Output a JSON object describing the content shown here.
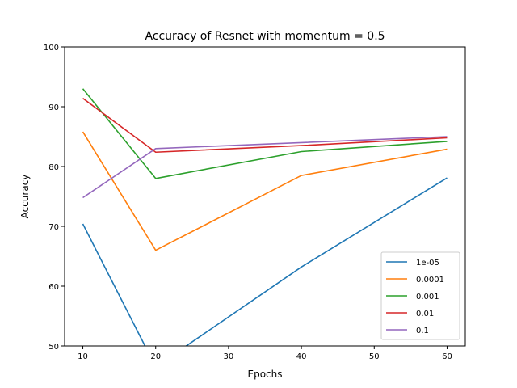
{
  "chart_data": {
    "type": "line",
    "title": "Accuracy of Resnet with momentum = 0.5",
    "xlabel": "Epochs",
    "ylabel": "Accuracy",
    "xlim": [
      7.5,
      62.5
    ],
    "ylim": [
      50,
      100
    ],
    "xticks": [
      10,
      20,
      30,
      40,
      50,
      60
    ],
    "yticks": [
      50,
      60,
      70,
      80,
      90,
      100
    ],
    "grid": false,
    "legend_position": "lower-right",
    "x": [
      10,
      20,
      40,
      60
    ],
    "series": [
      {
        "name": "1e-05",
        "color": "#1f77b4",
        "values": [
          70.4,
          46.5,
          63.2,
          78.1
        ]
      },
      {
        "name": "0.0001",
        "color": "#ff7f0e",
        "values": [
          85.8,
          66.0,
          78.5,
          82.9
        ]
      },
      {
        "name": "0.001",
        "color": "#2ca02c",
        "values": [
          93.0,
          78.0,
          82.5,
          84.2
        ]
      },
      {
        "name": "0.01",
        "color": "#d62728",
        "values": [
          91.4,
          82.4,
          83.5,
          84.8
        ]
      },
      {
        "name": "0.1",
        "color": "#9467bd",
        "values": [
          74.8,
          83.0,
          84.0,
          85.0
        ]
      }
    ]
  }
}
